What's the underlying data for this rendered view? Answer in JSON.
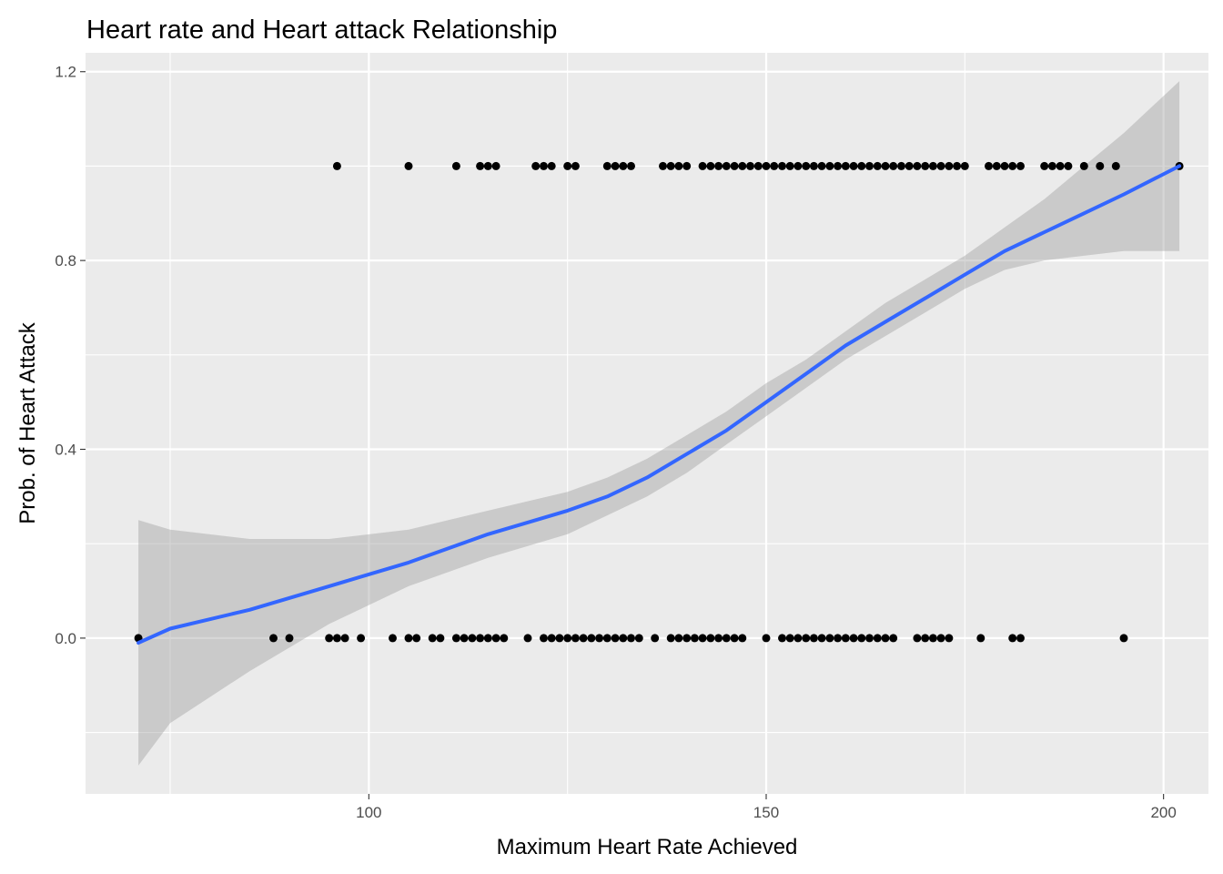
{
  "chart_data": {
    "type": "scatter",
    "title": "Heart rate and Heart attack Relationship",
    "xlabel": "Maximum Heart Rate Achieved",
    "ylabel": "Prob. of Heart Attack",
    "xlim": [
      64.35,
      205.65
    ],
    "ylim": [
      -0.33,
      1.24
    ],
    "x_ticks": [
      100,
      150,
      200
    ],
    "x_tick_labels": [
      "100",
      "150",
      "200"
    ],
    "y_ticks": [
      0.0,
      0.4,
      0.8,
      1.2
    ],
    "y_tick_labels": [
      "0.0",
      "0.4",
      "0.8",
      "1.2"
    ],
    "grid": true,
    "legend": "none",
    "colors": {
      "panel_background": "#ebebeb",
      "grid": "#ffffff",
      "points": "#000000",
      "smooth_line": "#3366ff",
      "confidence_band": "#999999"
    },
    "series": [
      {
        "kind": "points",
        "y": 1,
        "x": [
          96,
          105,
          111,
          114,
          115,
          116,
          121,
          122,
          123,
          125,
          126,
          130,
          131,
          132,
          133,
          137,
          138,
          139,
          140,
          142,
          143,
          144,
          145,
          146,
          147,
          148,
          149,
          150,
          151,
          152,
          153,
          154,
          155,
          156,
          157,
          158,
          159,
          160,
          161,
          162,
          163,
          164,
          165,
          166,
          167,
          168,
          169,
          170,
          171,
          172,
          173,
          174,
          175,
          178,
          179,
          180,
          181,
          182,
          185,
          186,
          187,
          188,
          190,
          192,
          194,
          202
        ]
      },
      {
        "kind": "points",
        "y": 0,
        "x": [
          71,
          88,
          90,
          95,
          96,
          97,
          99,
          103,
          105,
          106,
          108,
          109,
          111,
          112,
          113,
          114,
          115,
          116,
          117,
          120,
          122,
          123,
          124,
          125,
          126,
          127,
          128,
          129,
          130,
          131,
          132,
          133,
          134,
          136,
          138,
          139,
          140,
          141,
          142,
          143,
          144,
          145,
          146,
          147,
          150,
          152,
          153,
          154,
          155,
          156,
          157,
          158,
          159,
          160,
          161,
          162,
          163,
          164,
          165,
          166,
          169,
          170,
          171,
          172,
          173,
          177,
          181,
          182,
          195
        ]
      },
      {
        "kind": "smooth",
        "x": [
          71,
          75,
          85,
          95,
          105,
          115,
          125,
          130,
          135,
          140,
          145,
          150,
          155,
          160,
          165,
          170,
          175,
          180,
          185,
          190,
          195,
          202
        ],
        "y": [
          -0.01,
          0.02,
          0.06,
          0.11,
          0.16,
          0.22,
          0.27,
          0.3,
          0.34,
          0.39,
          0.44,
          0.5,
          0.56,
          0.62,
          0.67,
          0.72,
          0.77,
          0.82,
          0.86,
          0.9,
          0.94,
          1.0
        ],
        "ci_low": [
          -0.27,
          -0.18,
          -0.07,
          0.03,
          0.11,
          0.17,
          0.22,
          0.26,
          0.3,
          0.35,
          0.41,
          0.47,
          0.53,
          0.59,
          0.64,
          0.69,
          0.74,
          0.78,
          0.8,
          0.81,
          0.82,
          0.82
        ],
        "ci_high": [
          0.25,
          0.23,
          0.21,
          0.21,
          0.23,
          0.27,
          0.31,
          0.34,
          0.38,
          0.43,
          0.48,
          0.54,
          0.59,
          0.65,
          0.71,
          0.76,
          0.81,
          0.87,
          0.93,
          1.0,
          1.07,
          1.18
        ]
      }
    ]
  }
}
